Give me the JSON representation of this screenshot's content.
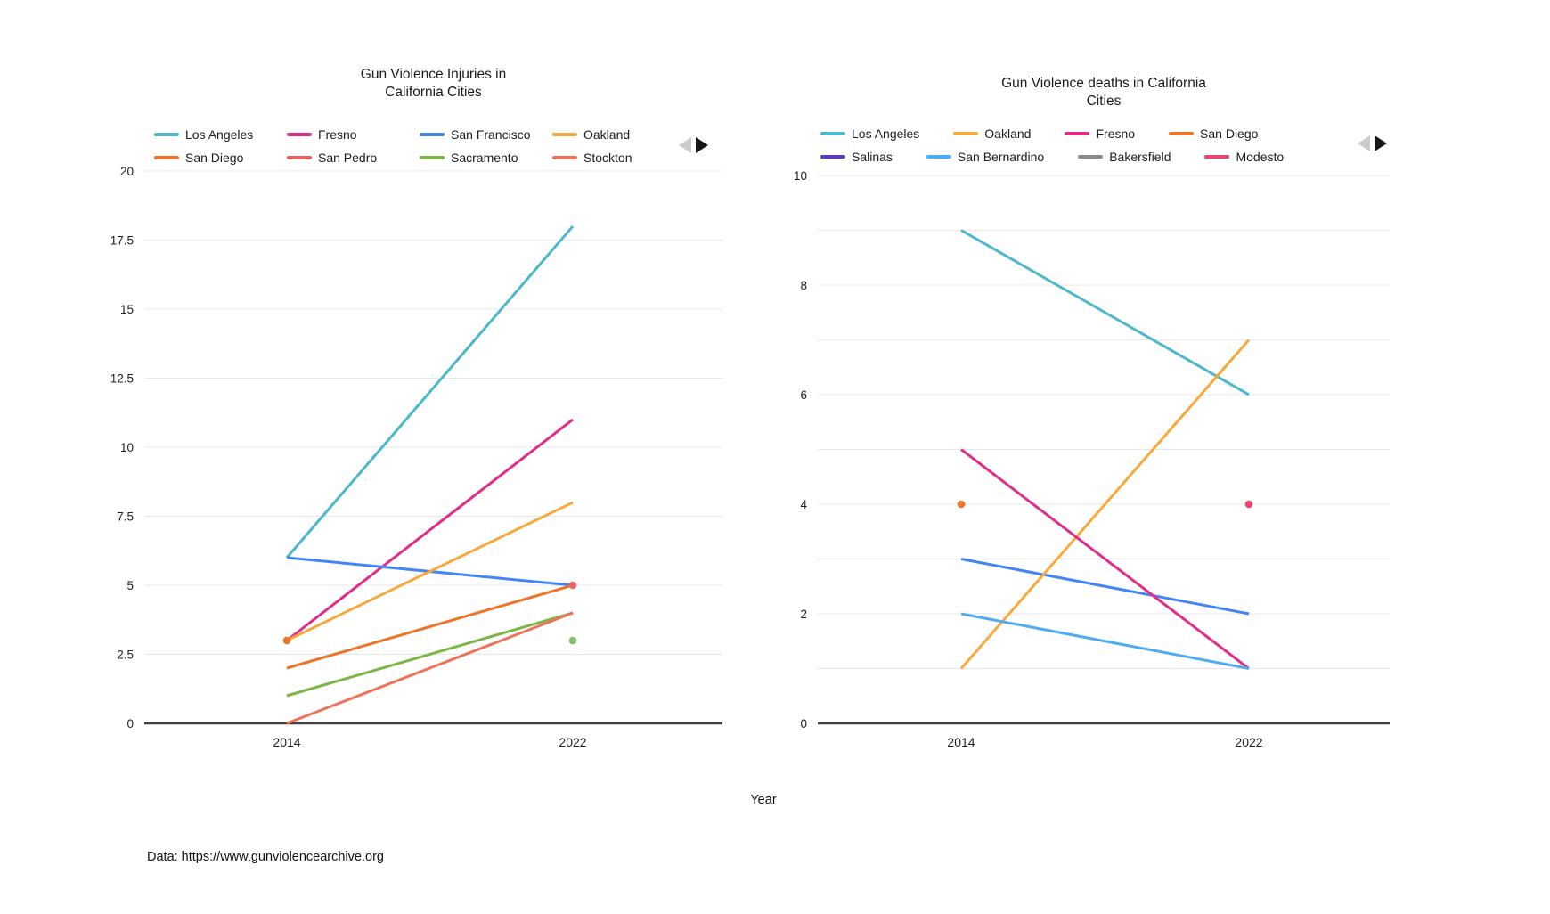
{
  "figure": {
    "x_axis_title": "Year",
    "source_note": "Data: https://www.gunviolencearchive.org",
    "background": "#ffffff"
  },
  "legend_pagination": {
    "prev_enabled": false,
    "next_enabled": true,
    "prev_color": "#cbcbcb",
    "next_color": "#161616"
  },
  "chart_data": [
    {
      "type": "line",
      "title": "Gun Violence Injuries in California Cities",
      "title_lines": [
        "Gun Violence Injuries in",
        "California Cities"
      ],
      "xlabel": "Year",
      "x_categories": [
        "2014",
        "2022"
      ],
      "ylim": [
        0,
        20
      ],
      "ytick_values": [
        20,
        17.5,
        15,
        12.5,
        10,
        7.5,
        5,
        2.5,
        0
      ],
      "ytick_labels": [
        "20",
        "17.5",
        "15",
        "12.5",
        "10",
        "7.5",
        "5",
        "2.5",
        "0"
      ],
      "grid": true,
      "legend_position": "top",
      "series": [
        {
          "name": "Los Angeles",
          "color": "#4BB9C9",
          "values": [
            6,
            18
          ]
        },
        {
          "name": "Fresno",
          "color": "#E12D89",
          "values": [
            3,
            11
          ]
        },
        {
          "name": "San Francisco",
          "color": "#4285F4",
          "values": [
            6,
            5
          ]
        },
        {
          "name": "Oakland",
          "color": "#F8A93C",
          "values": [
            3,
            8
          ]
        },
        {
          "name": "San Diego",
          "color": "#EE7428",
          "values": [
            2,
            5
          ]
        },
        {
          "name": "San Pedro",
          "color": "#E96461",
          "values": [
            null,
            5
          ]
        },
        {
          "name": "Sacramento",
          "color": "#7CB646",
          "values": [
            1,
            4
          ]
        },
        {
          "name": "Stockton",
          "color": "#F07258",
          "values": [
            0,
            4
          ]
        }
      ],
      "unlabeled_points": [
        {
          "x": "2014",
          "y": 3,
          "color": "#EE7428"
        },
        {
          "x": "2022",
          "y": 3,
          "color": "#7DC06B"
        }
      ]
    },
    {
      "type": "line",
      "title": "Gun Violence deaths in California Cities",
      "title_lines": [
        "Gun Violence deaths in California",
        "Cities"
      ],
      "xlabel": "Year",
      "x_categories": [
        "2014",
        "2022"
      ],
      "ylim": [
        0,
        10
      ],
      "ytick_values": [
        10,
        9,
        8,
        7,
        6,
        5,
        4,
        3,
        2,
        1,
        0
      ],
      "ytick_labels": [
        "10",
        "",
        "8",
        "",
        "6",
        "",
        "4",
        "",
        "2",
        "",
        "0"
      ],
      "grid": true,
      "legend_position": "top",
      "series": [
        {
          "name": "Los Angeles",
          "color": "#4BB9C9",
          "values": [
            9,
            6
          ]
        },
        {
          "name": "Oakland",
          "color": "#F8A93C",
          "values": [
            1,
            7
          ]
        },
        {
          "name": "Fresno",
          "color": "#E12D89",
          "values": [
            5,
            1
          ]
        },
        {
          "name": "San Diego",
          "color": "#EE7428",
          "values": [
            4,
            null
          ]
        },
        {
          "name": "Salinas",
          "color": "#5B3BC1",
          "values": [
            null,
            null
          ]
        },
        {
          "name": "San Bernardino",
          "color": "#4EACF2",
          "values": [
            2,
            1
          ]
        },
        {
          "name": "Bakersfield",
          "color": "#8A8A8A",
          "values": [
            null,
            null
          ]
        },
        {
          "name": "Modesto",
          "color": "#E8486E",
          "values": [
            null,
            4
          ]
        }
      ],
      "unlabeled_lines": [
        {
          "values": [
            3,
            2
          ],
          "color": "#4285F4"
        }
      ]
    }
  ]
}
